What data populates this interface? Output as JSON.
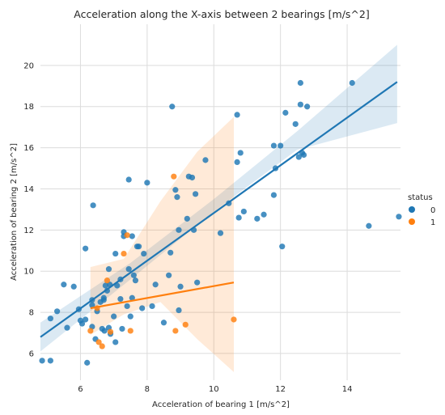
{
  "chart_data": {
    "type": "scatter",
    "title": "Acceleration along the X-axis between 2 bearings [m/s^2]",
    "xlabel": "Acceleration of bearing 1 [m/s^2]",
    "ylabel": "Acceleration of bearing 2 [m/s^2]",
    "xlim": [
      4.8,
      15.6
    ],
    "ylim": [
      4.7,
      22.0
    ],
    "xticks": [
      6,
      8,
      10,
      12,
      14
    ],
    "yticks": [
      6,
      8,
      10,
      12,
      14,
      16,
      18,
      20
    ],
    "grid": true,
    "legend": {
      "title": "status",
      "placement": "right"
    },
    "series": [
      {
        "name": "0",
        "color": "#1f77b4",
        "points": [
          [
            4.85,
            5.65
          ],
          [
            5.1,
            5.65
          ],
          [
            5.1,
            7.7
          ],
          [
            5.3,
            8.05
          ],
          [
            5.5,
            9.35
          ],
          [
            5.6,
            7.25
          ],
          [
            5.8,
            9.25
          ],
          [
            5.95,
            8.15
          ],
          [
            6.0,
            7.6
          ],
          [
            6.05,
            7.45
          ],
          [
            6.15,
            7.65
          ],
          [
            6.15,
            11.1
          ],
          [
            6.2,
            5.55
          ],
          [
            6.35,
            8.35
          ],
          [
            6.35,
            8.6
          ],
          [
            6.35,
            7.3
          ],
          [
            6.38,
            13.2
          ],
          [
            6.45,
            6.7
          ],
          [
            6.5,
            8.05
          ],
          [
            6.6,
            8.5
          ],
          [
            6.65,
            7.2
          ],
          [
            6.7,
            8.6
          ],
          [
            6.7,
            8.7
          ],
          [
            6.72,
            7.1
          ],
          [
            6.75,
            9.3
          ],
          [
            6.8,
            9.05
          ],
          [
            6.85,
            7.25
          ],
          [
            6.85,
            10.1
          ],
          [
            6.88,
            9.35
          ],
          [
            6.9,
            6.95
          ],
          [
            7.0,
            7.8
          ],
          [
            7.05,
            6.55
          ],
          [
            7.05,
            10.85
          ],
          [
            7.1,
            9.3
          ],
          [
            7.2,
            8.65
          ],
          [
            7.2,
            9.6
          ],
          [
            7.25,
            7.2
          ],
          [
            7.3,
            11.9
          ],
          [
            7.3,
            11.7
          ],
          [
            7.4,
            8.3
          ],
          [
            7.45,
            10.1
          ],
          [
            7.45,
            14.45
          ],
          [
            7.5,
            7.8
          ],
          [
            7.55,
            8.7
          ],
          [
            7.55,
            11.7
          ],
          [
            7.6,
            9.8
          ],
          [
            7.65,
            9.55
          ],
          [
            7.7,
            11.2
          ],
          [
            7.75,
            11.2
          ],
          [
            7.85,
            8.2
          ],
          [
            7.9,
            10.85
          ],
          [
            8.0,
            14.3
          ],
          [
            8.15,
            8.3
          ],
          [
            8.25,
            9.35
          ],
          [
            8.5,
            7.5
          ],
          [
            8.65,
            9.8
          ],
          [
            8.7,
            10.9
          ],
          [
            8.75,
            18.0
          ],
          [
            8.85,
            13.95
          ],
          [
            8.9,
            13.6
          ],
          [
            8.95,
            12.0
          ],
          [
            8.95,
            8.1
          ],
          [
            9.0,
            9.25
          ],
          [
            9.2,
            12.55
          ],
          [
            9.25,
            14.6
          ],
          [
            9.35,
            14.55
          ],
          [
            9.4,
            12.0
          ],
          [
            9.45,
            13.75
          ],
          [
            9.5,
            9.45
          ],
          [
            9.75,
            15.4
          ],
          [
            10.2,
            11.85
          ],
          [
            10.45,
            13.3
          ],
          [
            10.7,
            17.6
          ],
          [
            10.7,
            15.3
          ],
          [
            10.75,
            12.6
          ],
          [
            10.8,
            15.75
          ],
          [
            10.9,
            12.9
          ],
          [
            11.3,
            12.55
          ],
          [
            11.5,
            12.75
          ],
          [
            11.8,
            13.7
          ],
          [
            11.8,
            16.1
          ],
          [
            11.85,
            15.0
          ],
          [
            12.0,
            16.1
          ],
          [
            12.05,
            11.2
          ],
          [
            12.15,
            17.7
          ],
          [
            12.45,
            17.15
          ],
          [
            12.55,
            15.55
          ],
          [
            12.6,
            18.1
          ],
          [
            12.6,
            19.15
          ],
          [
            12.65,
            15.75
          ],
          [
            12.7,
            15.65
          ],
          [
            12.8,
            18.0
          ],
          [
            14.15,
            19.15
          ],
          [
            14.65,
            12.2
          ],
          [
            15.55,
            12.65
          ]
        ],
        "fit": {
          "x": [
            4.8,
            15.5
          ],
          "y": [
            6.8,
            19.2
          ]
        },
        "ci": [
          [
            4.8,
            6.1,
            7.5
          ],
          [
            7.5,
            9.6,
            10.4
          ],
          [
            10.0,
            12.9,
            13.5
          ],
          [
            12.5,
            15.9,
            16.8
          ],
          [
            15.5,
            17.2,
            21.0
          ]
        ]
      },
      {
        "name": "1",
        "color": "#ff7f0e",
        "points": [
          [
            6.3,
            7.1
          ],
          [
            6.5,
            8.2
          ],
          [
            6.55,
            6.55
          ],
          [
            6.65,
            6.35
          ],
          [
            6.8,
            9.55
          ],
          [
            6.9,
            7.05
          ],
          [
            7.3,
            10.85
          ],
          [
            7.4,
            11.75
          ],
          [
            7.5,
            7.1
          ],
          [
            8.8,
            14.6
          ],
          [
            8.85,
            7.1
          ],
          [
            9.15,
            7.4
          ],
          [
            10.6,
            7.65
          ]
        ],
        "fit": {
          "x": [
            6.3,
            10.6
          ],
          "y": [
            8.2,
            9.45
          ]
        },
        "ci": [
          [
            6.3,
            6.9,
            10.2
          ],
          [
            7.3,
            7.9,
            10.6
          ],
          [
            8.4,
            8.5,
            13.4
          ],
          [
            9.5,
            6.7,
            15.8
          ],
          [
            10.6,
            5.1,
            17.5
          ]
        ]
      }
    ]
  }
}
